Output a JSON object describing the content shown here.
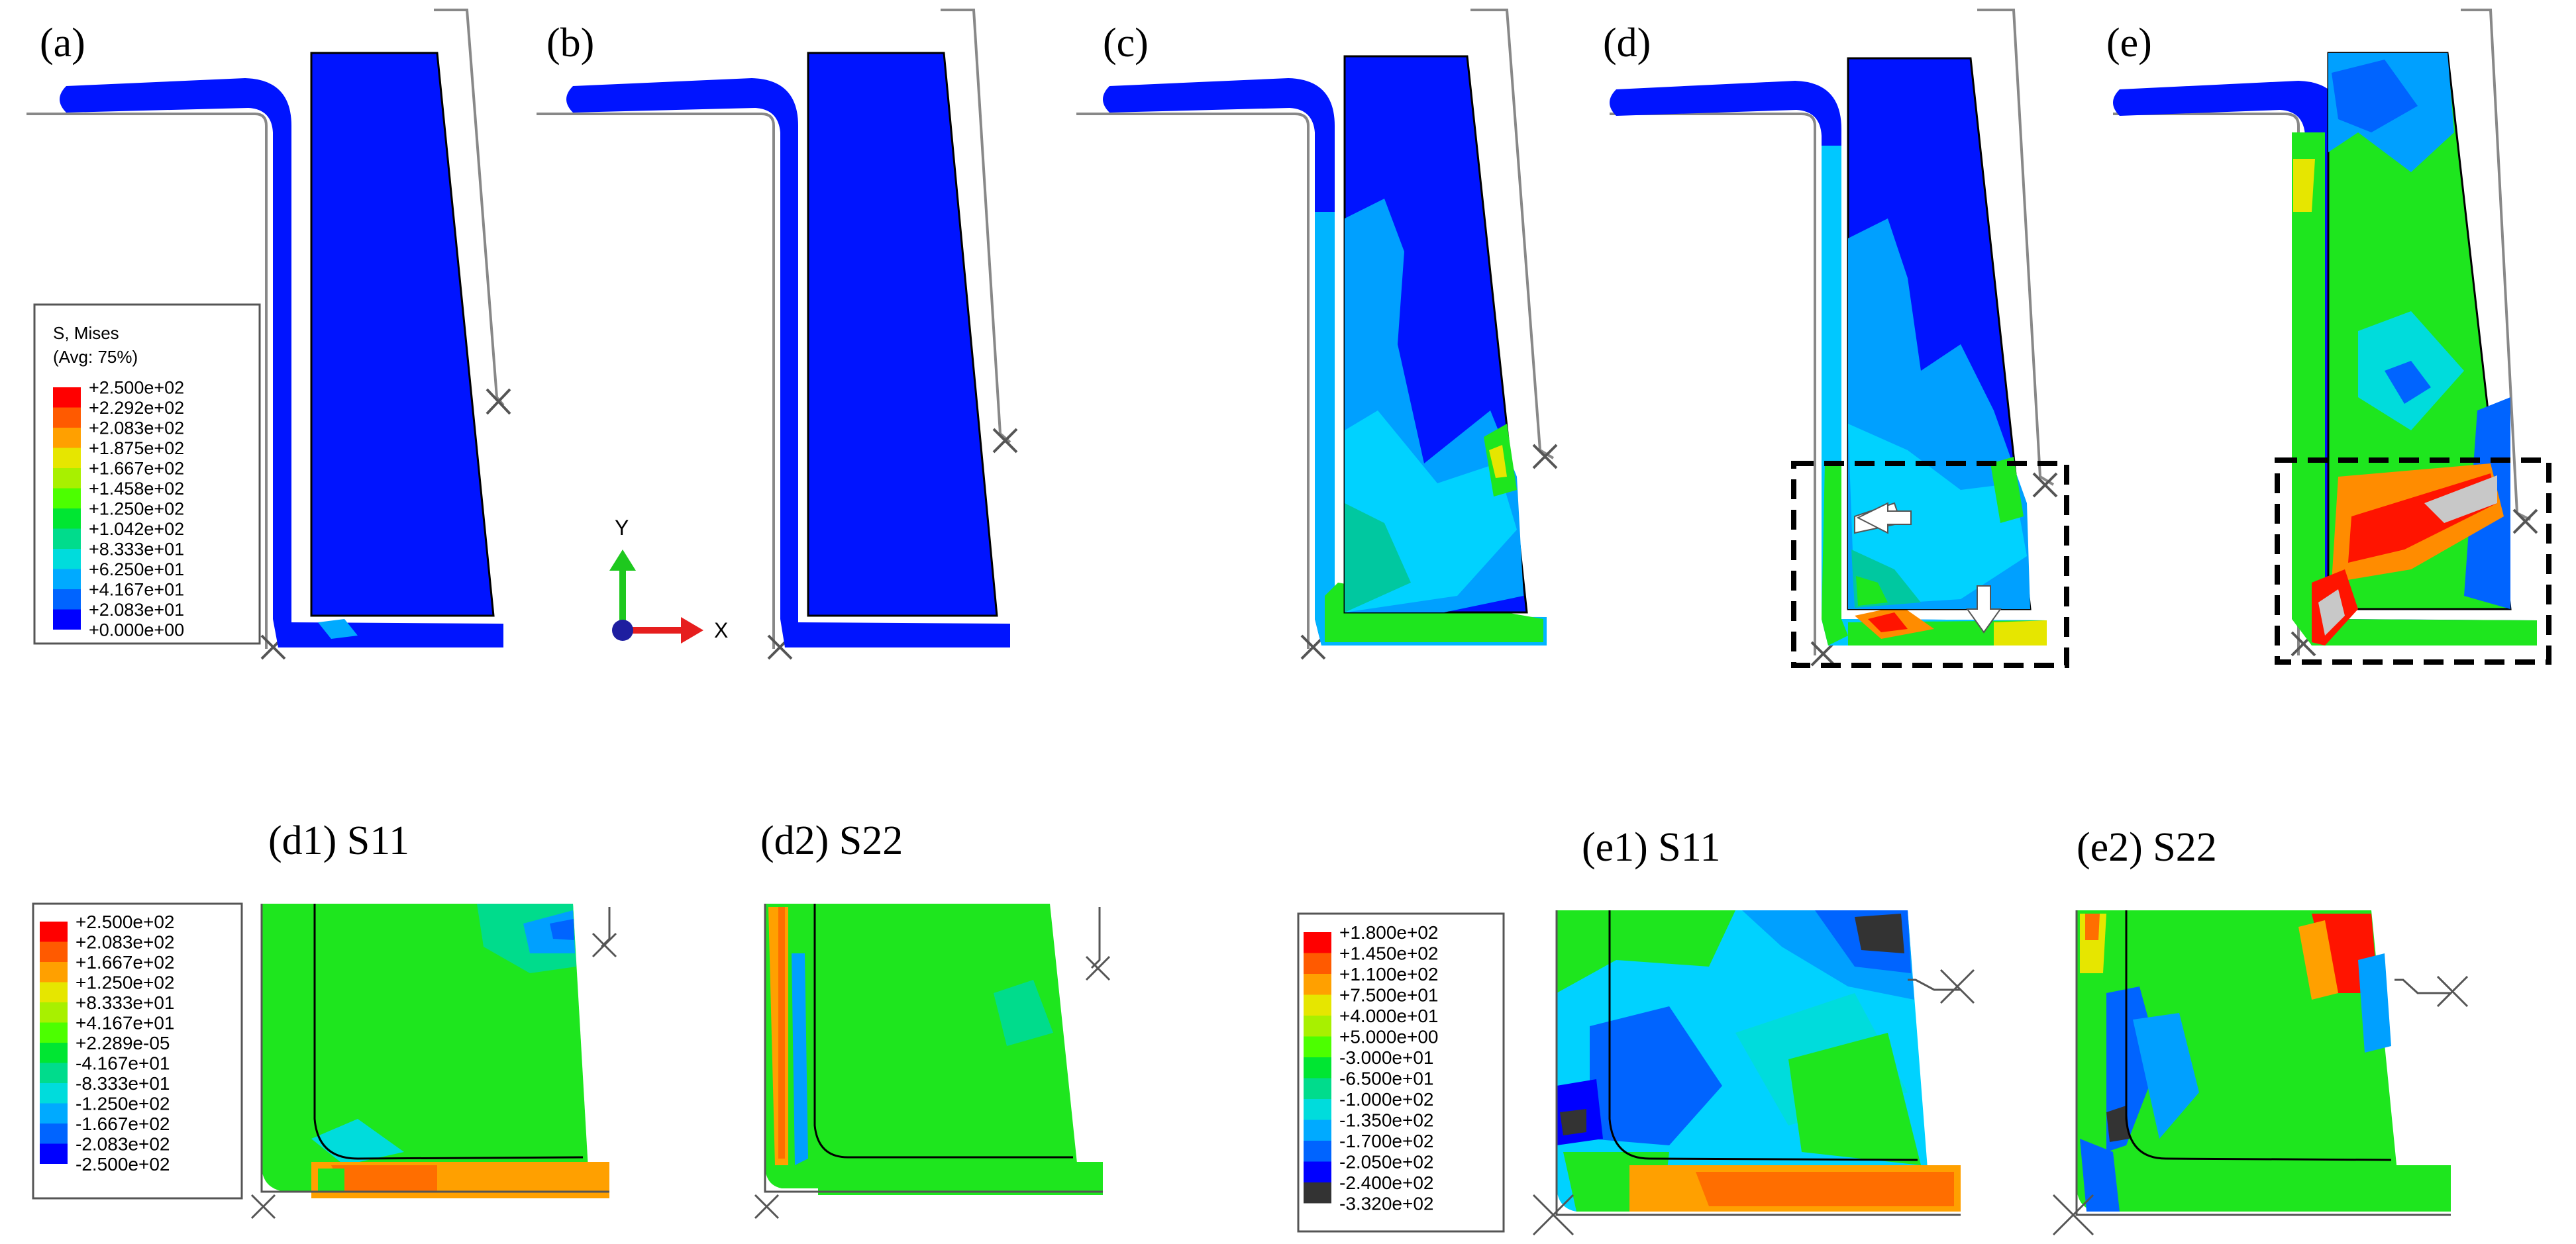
{
  "panels": {
    "a": {
      "label": "(a)"
    },
    "b": {
      "label": "(b)"
    },
    "c": {
      "label": "(c)"
    },
    "d": {
      "label": "(d)"
    },
    "e": {
      "label": "(e)"
    },
    "d1": {
      "label": "(d1) S11"
    },
    "d2": {
      "label": "(d2) S22"
    },
    "e1": {
      "label": "(e1) S11"
    },
    "e2": {
      "label": "(e2) S22"
    }
  },
  "legend_mises": {
    "title1": "S, Mises",
    "title2": "(Avg: 75%)",
    "values": [
      "+2.500e+02",
      "+2.292e+02",
      "+2.083e+02",
      "+1.875e+02",
      "+1.667e+02",
      "+1.458e+02",
      "+1.250e+02",
      "+1.042e+02",
      "+8.333e+01",
      "+6.250e+01",
      "+4.167e+01",
      "+2.083e+01",
      "+0.000e+00"
    ],
    "colors": [
      "#ff0000",
      "#ff5a00",
      "#ffa000",
      "#e6e600",
      "#a8f000",
      "#4cff00",
      "#00e632",
      "#00dc8c",
      "#00dcdc",
      "#00aaff",
      "#0064ff",
      "#0000ff"
    ]
  },
  "legend_d": {
    "values": [
      "+2.500e+02",
      "+2.083e+02",
      "+1.667e+02",
      "+1.250e+02",
      "+8.333e+01",
      "+4.167e+01",
      "+2.289e-05",
      "-4.167e+01",
      "-8.333e+01",
      "-1.250e+02",
      "-1.667e+02",
      "-2.083e+02",
      "-2.500e+02"
    ],
    "colors": [
      "#ff0000",
      "#ff5a00",
      "#ffa000",
      "#e6e600",
      "#a8f000",
      "#4cff00",
      "#00e632",
      "#00dc8c",
      "#00dcdc",
      "#00aaff",
      "#0064ff",
      "#0000ff"
    ]
  },
  "legend_e": {
    "values": [
      "+1.800e+02",
      "+1.450e+02",
      "+1.100e+02",
      "+7.500e+01",
      "+4.000e+01",
      "+5.000e+00",
      "-3.000e+01",
      "-6.500e+01",
      "-1.000e+02",
      "-1.350e+02",
      "-1.700e+02",
      "-2.050e+02",
      "-2.400e+02",
      "-3.320e+02"
    ],
    "colors": [
      "#ff0000",
      "#ff5a00",
      "#ffa000",
      "#e6e600",
      "#a8f000",
      "#4cff00",
      "#00e632",
      "#00dc8c",
      "#00dcdc",
      "#00aaff",
      "#0064ff",
      "#0000ff",
      "#333333"
    ]
  },
  "axes_triad": {
    "y_label": "Y",
    "x_label": "X"
  },
  "palette": {
    "blue": "#0014ff",
    "green": "#1ee61e",
    "cyan": "#00d2ff",
    "teal": "#00c8a0",
    "yellow": "#e6e600",
    "orange": "#ff8c00",
    "red": "#ff1400",
    "grey": "#c8c8c8",
    "dark": "#333333"
  }
}
